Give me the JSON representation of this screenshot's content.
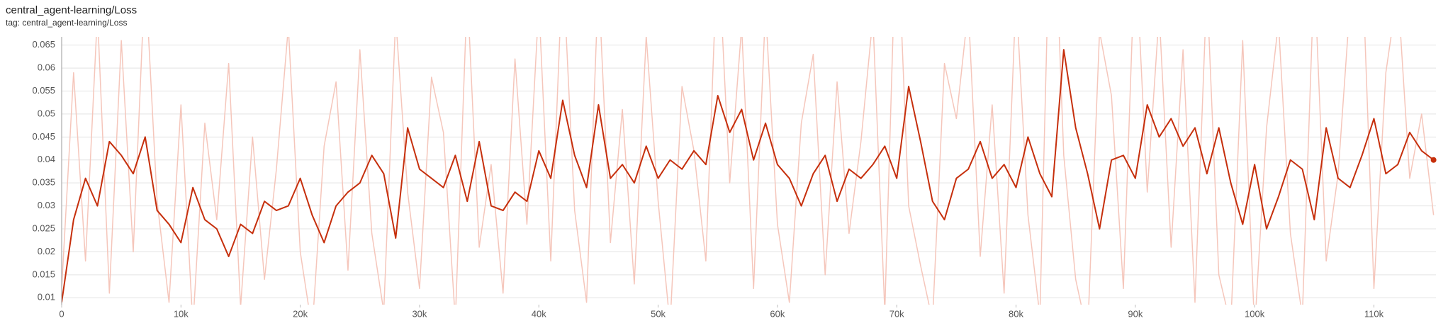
{
  "chart_data": {
    "type": "line",
    "title": "central_agent-learning/Loss",
    "subtitle": "tag: central_agent-learning/Loss",
    "x": [
      0,
      1000,
      2000,
      3000,
      4000,
      5000,
      6000,
      7000,
      8000,
      9000,
      10000,
      11000,
      12000,
      13000,
      14000,
      15000,
      16000,
      17000,
      18000,
      19000,
      20000,
      21000,
      22000,
      23000,
      24000,
      25000,
      26000,
      27000,
      28000,
      29000,
      30000,
      31000,
      32000,
      33000,
      34000,
      35000,
      36000,
      37000,
      38000,
      39000,
      40000,
      41000,
      42000,
      43000,
      44000,
      45000,
      46000,
      47000,
      48000,
      49000,
      50000,
      51000,
      52000,
      53000,
      54000,
      55000,
      56000,
      57000,
      58000,
      59000,
      60000,
      61000,
      62000,
      63000,
      64000,
      65000,
      66000,
      67000,
      68000,
      69000,
      70000,
      71000,
      72000,
      73000,
      74000,
      75000,
      76000,
      77000,
      78000,
      79000,
      80000,
      81000,
      82000,
      83000,
      84000,
      85000,
      86000,
      87000,
      88000,
      89000,
      90000,
      91000,
      92000,
      93000,
      94000,
      95000,
      96000,
      97000,
      98000,
      99000,
      100000,
      101000,
      102000,
      103000,
      104000,
      105000,
      106000,
      107000,
      108000,
      109000,
      110000,
      111000,
      112000,
      113000,
      114000,
      115000
    ],
    "series": [
      {
        "color": "#f5c6bb",
        "values": [
          0.012,
          0.059,
          0.018,
          0.072,
          0.011,
          0.066,
          0.02,
          0.081,
          0.031,
          0.009,
          0.052,
          0.004,
          0.048,
          0.027,
          0.061,
          0.008,
          0.045,
          0.014,
          0.038,
          0.069,
          0.02,
          0.003,
          0.043,
          0.057,
          0.016,
          0.064,
          0.024,
          0.007,
          0.071,
          0.033,
          0.012,
          0.058,
          0.046,
          0.005,
          0.077,
          0.021,
          0.039,
          0.011,
          0.062,
          0.026,
          0.074,
          0.018,
          0.083,
          0.029,
          0.009,
          0.079,
          0.022,
          0.051,
          0.013,
          0.067,
          0.031,
          0.004,
          0.056,
          0.042,
          0.018,
          0.088,
          0.035,
          0.069,
          0.012,
          0.073,
          0.026,
          0.009,
          0.048,
          0.063,
          0.015,
          0.057,
          0.024,
          0.044,
          0.071,
          0.007,
          0.095,
          0.03,
          0.017,
          0.005,
          0.061,
          0.049,
          0.073,
          0.019,
          0.052,
          0.011,
          0.076,
          0.028,
          0.006,
          0.11,
          0.041,
          0.014,
          0.002,
          0.068,
          0.054,
          0.012,
          0.087,
          0.033,
          0.072,
          0.021,
          0.064,
          0.009,
          0.078,
          0.015,
          0.004,
          0.066,
          0.003,
          0.047,
          0.07,
          0.024,
          0.006,
          0.081,
          0.018,
          0.037,
          0.074,
          0.085,
          0.012,
          0.059,
          0.077,
          0.036,
          0.05,
          0.028
        ]
      },
      {
        "color": "#c62f0c",
        "values": [
          0.009,
          0.027,
          0.036,
          0.03,
          0.044,
          0.041,
          0.037,
          0.045,
          0.029,
          0.026,
          0.022,
          0.034,
          0.027,
          0.025,
          0.019,
          0.026,
          0.024,
          0.031,
          0.029,
          0.03,
          0.036,
          0.028,
          0.022,
          0.03,
          0.033,
          0.035,
          0.041,
          0.037,
          0.023,
          0.047,
          0.038,
          0.036,
          0.034,
          0.041,
          0.031,
          0.044,
          0.03,
          0.029,
          0.033,
          0.031,
          0.042,
          0.036,
          0.053,
          0.041,
          0.034,
          0.052,
          0.036,
          0.039,
          0.035,
          0.043,
          0.036,
          0.04,
          0.038,
          0.042,
          0.039,
          0.054,
          0.046,
          0.051,
          0.04,
          0.048,
          0.039,
          0.036,
          0.03,
          0.037,
          0.041,
          0.031,
          0.038,
          0.036,
          0.039,
          0.043,
          0.036,
          0.056,
          0.044,
          0.031,
          0.027,
          0.036,
          0.038,
          0.044,
          0.036,
          0.039,
          0.034,
          0.045,
          0.037,
          0.032,
          0.064,
          0.047,
          0.037,
          0.025,
          0.04,
          0.041,
          0.036,
          0.052,
          0.045,
          0.049,
          0.043,
          0.047,
          0.037,
          0.047,
          0.035,
          0.026,
          0.039,
          0.025,
          0.032,
          0.04,
          0.038,
          0.027,
          0.047,
          0.036,
          0.034,
          0.041,
          0.049,
          0.037,
          0.039,
          0.046,
          0.042,
          0.04
        ]
      }
    ],
    "xlim": [
      0,
      115200
    ],
    "ylim": [
      0.0085,
      0.0668
    ],
    "xticks": [
      0,
      {
        "value": 10000,
        "label": "10k"
      },
      {
        "value": 20000,
        "label": "20k"
      },
      {
        "value": 30000,
        "label": "30k"
      },
      {
        "value": 40000,
        "label": "40k"
      },
      {
        "value": 50000,
        "label": "50k"
      },
      {
        "value": 60000,
        "label": "60k"
      },
      {
        "value": 70000,
        "label": "70k"
      },
      {
        "value": 80000,
        "label": "80k"
      },
      {
        "value": 90000,
        "label": "90k"
      },
      {
        "value": 100000,
        "label": "100k"
      },
      {
        "value": 110000,
        "label": "110k"
      }
    ],
    "yticks": [
      0.01,
      0.015,
      0.02,
      0.025,
      0.03,
      0.035,
      0.04,
      0.045,
      0.05,
      0.055,
      0.06,
      0.065
    ],
    "grid": true
  }
}
